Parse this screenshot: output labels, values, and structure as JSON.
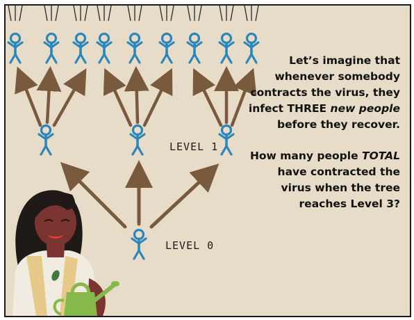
{
  "text": {
    "intro_pre": "Let’s imagine that whenever somebody contracts the virus, they infect THREE ",
    "intro_em": "new people",
    "intro_post": " before they recover.",
    "question_pre": "How many people ",
    "question_em": "TOTAL",
    "question_post": " have contracted the virus when the tree reaches Level 3?"
  },
  "labels": {
    "level0": "LEVEL 0",
    "level1": "LEVEL 1"
  },
  "colors": {
    "background": "#e7dcc8",
    "person": "#2b86b9",
    "arrow": "#7a5a3d",
    "woman_skin": "#7a3530",
    "woman_hair": "#1f1a18",
    "shirt": "#f1ece2",
    "can": "#86b84a"
  }
}
